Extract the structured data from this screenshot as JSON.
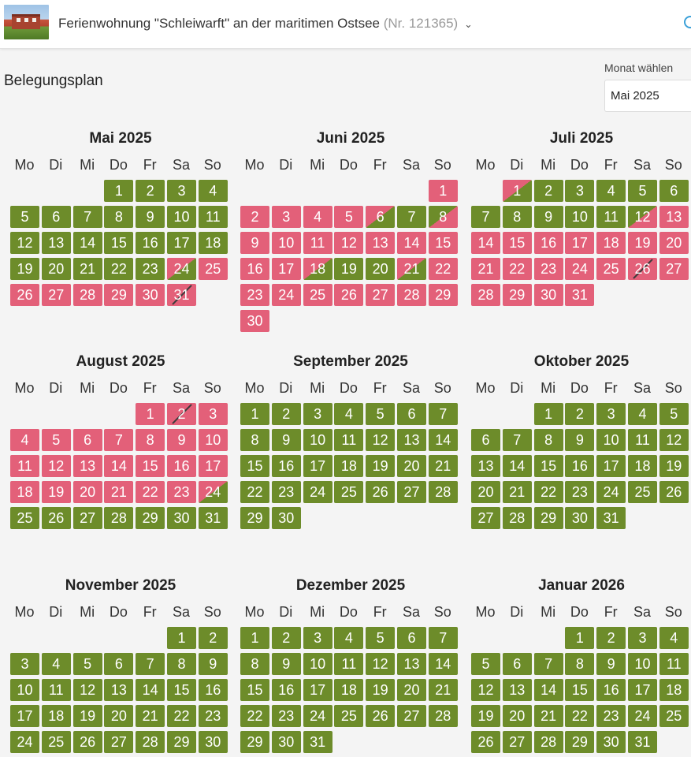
{
  "header": {
    "property_name": "Ferienwohnung \"Schleiwarft\" an der maritimen Ostsee",
    "property_number": "(Nr. 121365)",
    "chevron": "⌄"
  },
  "page": {
    "heading": "Belegungsplan",
    "month_select_label": "Monat wählen",
    "month_select_value": "Mai 2025"
  },
  "weekdays": [
    "Mo",
    "Di",
    "Mi",
    "Do",
    "Fr",
    "Sa",
    "So"
  ],
  "legend_colors": {
    "free": "#6d8c2a",
    "booked": "#e36079"
  },
  "months": [
    {
      "name": "Mai 2025",
      "offset": 3,
      "days": 31,
      "status": "gggggggggggggggggggggggcrrrrrrs"
    },
    {
      "name": "Juni 2025",
      "offset": 6,
      "days": 30,
      "status": "rrrrrcgirrrrrrrrrcggcrrrrrrrrr"
    },
    {
      "name": "Juli 2025",
      "offset": 1,
      "days": 31,
      "status": "cggggggggggirrrrrrrrrrrrrsrrrrr"
    },
    {
      "name": "August 2025",
      "offset": 4,
      "days": 31,
      "status": "rsrrrrrrrrrrrrrrrrrrrrrcggggggg"
    },
    {
      "name": "September 2025",
      "offset": 0,
      "days": 30,
      "status": "gggggggggggggggggggggggggggggg"
    },
    {
      "name": "Oktober 2025",
      "offset": 2,
      "days": 31,
      "status": "ggggggggggggggggggggggggggggggg"
    },
    {
      "name": "November 2025",
      "offset": 5,
      "days": 30,
      "status": "gggggggggggggggggggggggggggggg"
    },
    {
      "name": "Dezember 2025",
      "offset": 0,
      "days": 31,
      "status": "ggggggggggggggggggggggggggggggg"
    },
    {
      "name": "Januar 2026",
      "offset": 3,
      "days": 31,
      "status": "ggggggggggggggggggggggggggggggg"
    }
  ]
}
